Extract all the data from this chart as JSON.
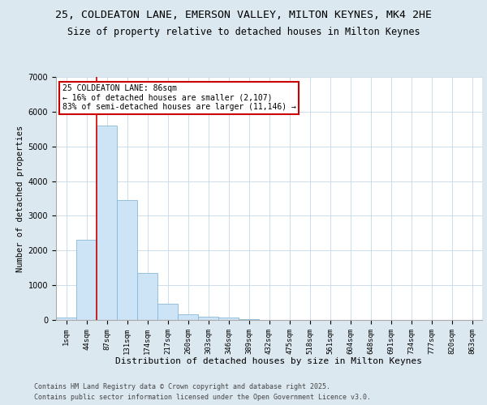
{
  "title1": "25, COLDEATON LANE, EMERSON VALLEY, MILTON KEYNES, MK4 2HE",
  "title2": "Size of property relative to detached houses in Milton Keynes",
  "xlabel": "Distribution of detached houses by size in Milton Keynes",
  "ylabel": "Number of detached properties",
  "categories": [
    "1sqm",
    "44sqm",
    "87sqm",
    "131sqm",
    "174sqm",
    "217sqm",
    "260sqm",
    "303sqm",
    "346sqm",
    "389sqm",
    "432sqm",
    "475sqm",
    "518sqm",
    "561sqm",
    "604sqm",
    "648sqm",
    "691sqm",
    "734sqm",
    "777sqm",
    "820sqm",
    "863sqm"
  ],
  "values": [
    75,
    2300,
    5600,
    3450,
    1350,
    475,
    175,
    100,
    60,
    35,
    5,
    2,
    0,
    0,
    0,
    0,
    0,
    0,
    0,
    0,
    0
  ],
  "bar_color": "#cce4f5",
  "bar_edge_color": "#89b8d8",
  "red_line_index": 2,
  "annotation_text": "25 COLDEATON LANE: 86sqm\n← 16% of detached houses are smaller (2,107)\n83% of semi-detached houses are larger (11,146) →",
  "annotation_box_color": "#ffffff",
  "annotation_box_edge": "#cc0000",
  "ylim": [
    0,
    7000
  ],
  "yticks": [
    0,
    1000,
    2000,
    3000,
    4000,
    5000,
    6000,
    7000
  ],
  "bg_color": "#dce8f0",
  "plot_bg_color": "#ffffff",
  "grid_color": "#c5d8e8",
  "footer1": "Contains HM Land Registry data © Crown copyright and database right 2025.",
  "footer2": "Contains public sector information licensed under the Open Government Licence v3.0.",
  "title_fontsize": 9.5,
  "subtitle_fontsize": 8.5,
  "tick_fontsize": 6.5,
  "label_fontsize": 8,
  "footer_fontsize": 6,
  "ylabel_fontsize": 7.5
}
